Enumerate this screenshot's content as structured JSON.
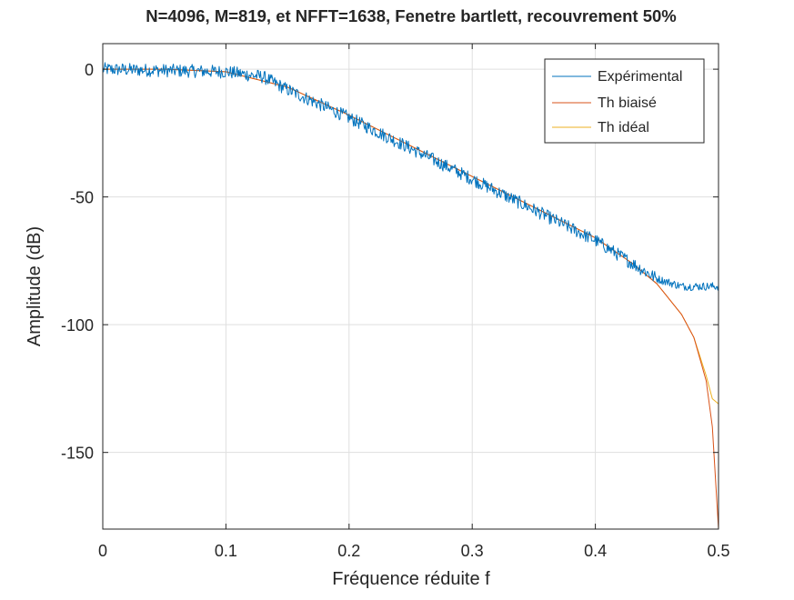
{
  "chart_data": {
    "type": "line",
    "title": "N=4096, M=819, et NFFT=1638, Fenetre bartlett, recouvrement 50%",
    "xlabel": "Fréquence réduite f",
    "ylabel": "Amplitude (dB)",
    "xlim": [
      0,
      0.5
    ],
    "ylim": [
      -180,
      10
    ],
    "xticks": [
      0,
      0.1,
      0.2,
      0.3,
      0.4,
      0.5
    ],
    "xtick_labels": [
      "0",
      "0.1",
      "0.2",
      "0.3",
      "0.4",
      "0.5"
    ],
    "yticks": [
      0,
      -50,
      -100,
      -150
    ],
    "ytick_labels": [
      "0",
      "-50",
      "-100",
      "-150"
    ],
    "grid": true,
    "legend_position": "top-right",
    "series": [
      {
        "name": "Expérimental",
        "color": "#0072bd",
        "note_values": "noisy estimate around the ideal curve, floor near -85 dB beyond f≈0.45",
        "x": [
          0,
          0.05,
          0.1,
          0.13,
          0.15,
          0.2,
          0.25,
          0.3,
          0.35,
          0.4,
          0.43,
          0.45,
          0.47,
          0.5
        ],
        "values": [
          0,
          -0.5,
          -1,
          -3,
          -8,
          -19,
          -31,
          -43,
          -55,
          -67,
          -76,
          -82,
          -85,
          -85
        ]
      },
      {
        "name": "Th biaisé",
        "color": "#d95319",
        "x": [
          0,
          0.05,
          0.1,
          0.15,
          0.2,
          0.25,
          0.3,
          0.35,
          0.4,
          0.43,
          0.45,
          0.47,
          0.48,
          0.49,
          0.495,
          0.5
        ],
        "values": [
          0,
          0,
          -1,
          -7,
          -18,
          -30,
          -42,
          -54,
          -66,
          -76,
          -84,
          -96,
          -105,
          -122,
          -140,
          -180
        ]
      },
      {
        "name": "Th idéal",
        "color": "#edb120",
        "x": [
          0,
          0.05,
          0.1,
          0.15,
          0.2,
          0.25,
          0.3,
          0.35,
          0.4,
          0.43,
          0.45,
          0.47,
          0.48,
          0.49,
          0.495,
          0.5
        ],
        "values": [
          0,
          0,
          -1,
          -7,
          -18,
          -30,
          -42,
          -54,
          -66,
          -76,
          -84,
          -96,
          -105,
          -120,
          -129,
          -131
        ]
      }
    ]
  }
}
